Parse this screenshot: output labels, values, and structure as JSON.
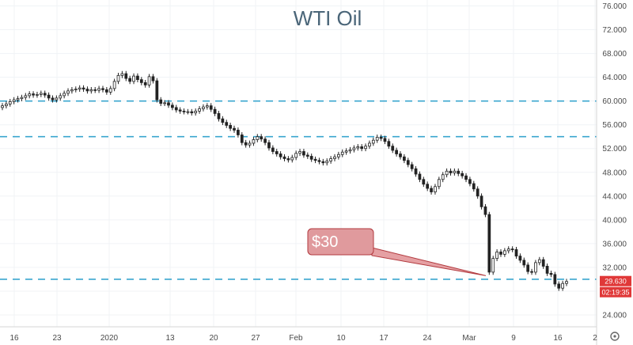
{
  "chart_data": {
    "type": "candlestick",
    "title": "WTI Oil",
    "ylim": [
      22,
      77
    ],
    "y_ticks": [
      "24.000",
      "28.000",
      "32.000",
      "36.000",
      "40.000",
      "44.000",
      "48.000",
      "52.000",
      "56.000",
      "60.000",
      "64.000",
      "68.000",
      "72.000",
      "76.000"
    ],
    "x_ticks": [
      "16",
      "23",
      "2020",
      "13",
      "20",
      "27",
      "Feb",
      "10",
      "17",
      "24",
      "Mar",
      "9",
      "16",
      "2"
    ],
    "horizontal_lines": [
      60.0,
      54.0,
      30.0
    ],
    "annotation": {
      "label": "$30",
      "points_to": {
        "x": "Mar 6",
        "y": 30.6
      }
    },
    "price_badge": {
      "price": "29.630",
      "countdown": "02:19:35"
    },
    "series": [
      {
        "values": [
          59.2,
          59.5,
          59.9,
          60.2,
          60.4,
          60.6,
          60.9,
          61.2,
          61.0,
          61.1,
          61.3,
          61.0,
          60.5,
          60.2,
          60.5,
          60.9,
          61.3,
          61.7,
          61.9,
          62.0,
          62.2,
          62.0,
          61.7,
          61.9,
          61.8,
          62.1,
          61.9,
          61.5,
          62.1,
          63.3,
          64.3,
          64.6,
          63.8,
          63.3,
          64.2,
          63.6,
          63.1,
          62.7,
          64.1,
          63.4,
          60.2,
          59.6,
          59.7,
          59.3,
          58.9,
          58.5,
          58.3,
          58.2,
          58.2,
          58.0,
          58.3,
          58.7,
          59.0,
          59.2,
          58.6,
          57.9,
          57.0,
          56.4,
          55.9,
          55.4,
          55.1,
          54.3,
          53.0,
          52.6,
          52.9,
          53.5,
          54.0,
          53.6,
          53.0,
          52.1,
          51.5,
          51.1,
          50.6,
          50.3,
          50.1,
          50.5,
          51.2,
          51.5,
          50.9,
          50.7,
          50.2,
          50.0,
          49.8,
          49.6,
          49.9,
          50.3,
          50.6,
          51.0,
          51.4,
          51.6,
          51.8,
          52.1,
          52.3,
          52.0,
          52.4,
          52.9,
          53.4,
          53.9,
          53.7,
          53.2,
          52.4,
          51.7,
          51.1,
          50.6,
          50.0,
          49.3,
          48.6,
          47.7,
          46.8,
          46.0,
          45.3,
          44.7,
          45.6,
          46.8,
          47.6,
          48.2,
          47.9,
          48.2,
          47.8,
          47.4,
          46.8,
          46.1,
          45.2,
          44.0,
          42.2,
          40.9,
          31.2,
          33.5,
          34.6,
          34.2,
          34.8,
          35.1,
          35.0,
          33.9,
          33.2,
          32.4,
          31.3,
          31.2,
          32.8,
          33.3,
          32.2,
          31.0,
          30.8,
          29.2,
          28.5,
          29.3,
          29.63
        ]
      }
    ]
  }
}
